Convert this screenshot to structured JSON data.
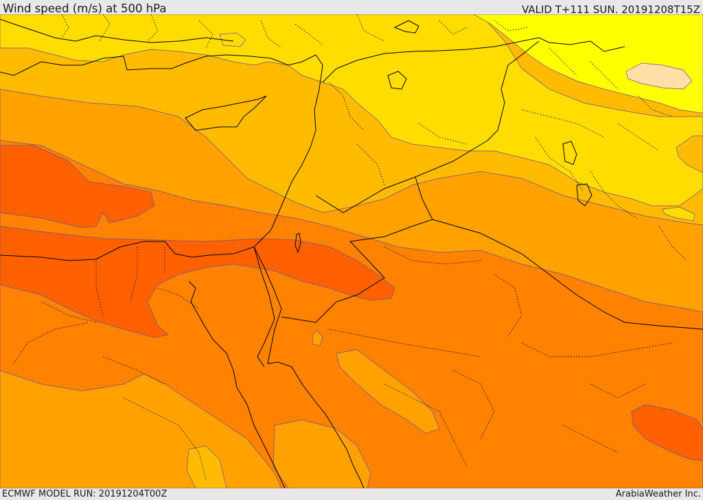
{
  "header": {
    "title": "Wind speed (m/s) at 500 hPa",
    "valid_time": "VALID T+111 SUN. 20191208T15Z"
  },
  "footer": {
    "model_run": "ECMWF MODEL RUN: 20191204T00Z",
    "credit": "ArabiaWeather Inc."
  },
  "colors": {
    "band_lightest": "#ffdfa8",
    "band_yellow": "#ffff00",
    "band_gold": "#ffdd00",
    "band_amber": "#ffbb00",
    "band_orange": "#ffa200",
    "band_dark_orange": "#ff8200",
    "band_red_orange": "#ff6100",
    "contour_line": "#6b4f8f",
    "coastline": "#000000"
  }
}
